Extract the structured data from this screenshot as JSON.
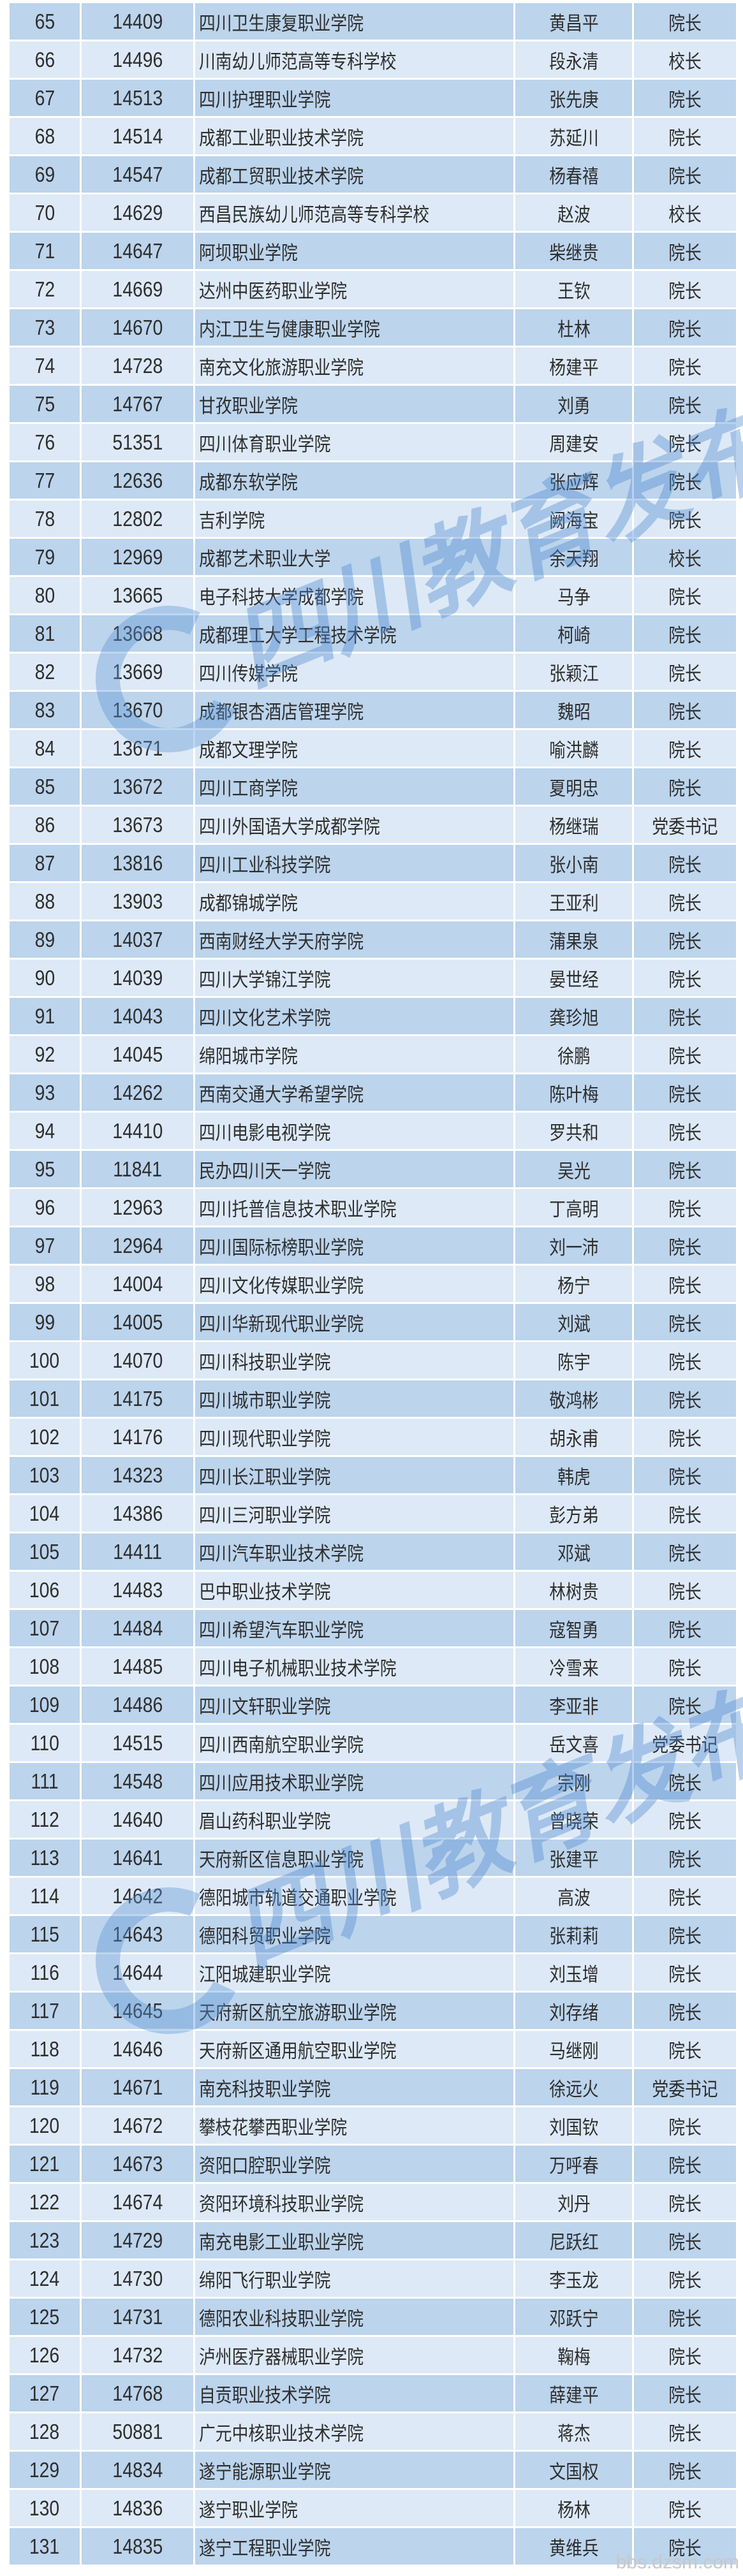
{
  "watermark": {
    "text": "四川教育发布",
    "site": "bbs.dzsm.com"
  },
  "table": {
    "rows": [
      [
        "65",
        "14409",
        "四川卫生康复职业学院",
        "黄昌平",
        "院长"
      ],
      [
        "66",
        "14496",
        "川南幼儿师范高等专科学校",
        "段永清",
        "校长"
      ],
      [
        "67",
        "14513",
        "四川护理职业学院",
        "张先庚",
        "院长"
      ],
      [
        "68",
        "14514",
        "成都工业职业技术学院",
        "苏延川",
        "院长"
      ],
      [
        "69",
        "14547",
        "成都工贸职业技术学院",
        "杨春禧",
        "院长"
      ],
      [
        "70",
        "14629",
        "西昌民族幼儿师范高等专科学校",
        "赵波",
        "校长"
      ],
      [
        "71",
        "14647",
        "阿坝职业学院",
        "柴继贵",
        "院长"
      ],
      [
        "72",
        "14669",
        "达州中医药职业学院",
        "王钦",
        "院长"
      ],
      [
        "73",
        "14670",
        "内江卫生与健康职业学院",
        "杜林",
        "院长"
      ],
      [
        "74",
        "14728",
        "南充文化旅游职业学院",
        "杨建平",
        "院长"
      ],
      [
        "75",
        "14767",
        "甘孜职业学院",
        "刘勇",
        "院长"
      ],
      [
        "76",
        "51351",
        "四川体育职业学院",
        "周建安",
        "院长"
      ],
      [
        "77",
        "12636",
        "成都东软学院",
        "张应辉",
        "院长"
      ],
      [
        "78",
        "12802",
        "吉利学院",
        "阙海宝",
        "院长"
      ],
      [
        "79",
        "12969",
        "成都艺术职业大学",
        "余天翔",
        "校长"
      ],
      [
        "80",
        "13665",
        "电子科技大学成都学院",
        "马争",
        "院长"
      ],
      [
        "81",
        "13668",
        "成都理工大学工程技术学院",
        "柯崎",
        "院长"
      ],
      [
        "82",
        "13669",
        "四川传媒学院",
        "张颖江",
        "院长"
      ],
      [
        "83",
        "13670",
        "成都银杏酒店管理学院",
        "魏昭",
        "院长"
      ],
      [
        "84",
        "13671",
        "成都文理学院",
        "喻洪麟",
        "院长"
      ],
      [
        "85",
        "13672",
        "四川工商学院",
        "夏明忠",
        "院长"
      ],
      [
        "86",
        "13673",
        "四川外国语大学成都学院",
        "杨继瑞",
        "党委书记"
      ],
      [
        "87",
        "13816",
        "四川工业科技学院",
        "张小南",
        "院长"
      ],
      [
        "88",
        "13903",
        "成都锦城学院",
        "王亚利",
        "院长"
      ],
      [
        "89",
        "14037",
        "西南财经大学天府学院",
        "蒲果泉",
        "院长"
      ],
      [
        "90",
        "14039",
        "四川大学锦江学院",
        "晏世经",
        "院长"
      ],
      [
        "91",
        "14043",
        "四川文化艺术学院",
        "龚珍旭",
        "院长"
      ],
      [
        "92",
        "14045",
        "绵阳城市学院",
        "徐鹏",
        "院长"
      ],
      [
        "93",
        "14262",
        "西南交通大学希望学院",
        "陈叶梅",
        "院长"
      ],
      [
        "94",
        "14410",
        "四川电影电视学院",
        "罗共和",
        "院长"
      ],
      [
        "95",
        "11841",
        "民办四川天一学院",
        "吴光",
        "院长"
      ],
      [
        "96",
        "12963",
        "四川托普信息技术职业学院",
        "丁高明",
        "院长"
      ],
      [
        "97",
        "12964",
        "四川国际标榜职业学院",
        "刘一沛",
        "院长"
      ],
      [
        "98",
        "14004",
        "四川文化传媒职业学院",
        "杨宁",
        "院长"
      ],
      [
        "99",
        "14005",
        "四川华新现代职业学院",
        "刘斌",
        "院长"
      ],
      [
        "100",
        "14070",
        "四川科技职业学院",
        "陈宇",
        "院长"
      ],
      [
        "101",
        "14175",
        "四川城市职业学院",
        "敬鸿彬",
        "院长"
      ],
      [
        "102",
        "14176",
        "四川现代职业学院",
        "胡永甫",
        "院长"
      ],
      [
        "103",
        "14323",
        "四川长江职业学院",
        "韩虎",
        "院长"
      ],
      [
        "104",
        "14386",
        "四川三河职业学院",
        "彭方弟",
        "院长"
      ],
      [
        "105",
        "14411",
        "四川汽车职业技术学院",
        "邓斌",
        "院长"
      ],
      [
        "106",
        "14483",
        "巴中职业技术学院",
        "林树贵",
        "院长"
      ],
      [
        "107",
        "14484",
        "四川希望汽车职业学院",
        "寇智勇",
        "院长"
      ],
      [
        "108",
        "14485",
        "四川电子机械职业技术学院",
        "冷雪来",
        "院长"
      ],
      [
        "109",
        "14486",
        "四川文轩职业学院",
        "李亚非",
        "院长"
      ],
      [
        "110",
        "14515",
        "四川西南航空职业学院",
        "岳文喜",
        "党委书记"
      ],
      [
        "111",
        "14548",
        "四川应用技术职业学院",
        "宗刚",
        "院长"
      ],
      [
        "112",
        "14640",
        "眉山药科职业学院",
        "曾晓荣",
        "院长"
      ],
      [
        "113",
        "14641",
        "天府新区信息职业学院",
        "张建平",
        "院长"
      ],
      [
        "114",
        "14642",
        "德阳城市轨道交通职业学院",
        "高波",
        "院长"
      ],
      [
        "115",
        "14643",
        "德阳科贸职业学院",
        "张莉莉",
        "院长"
      ],
      [
        "116",
        "14644",
        "江阳城建职业学院",
        "刘玉增",
        "院长"
      ],
      [
        "117",
        "14645",
        "天府新区航空旅游职业学院",
        "刘存绪",
        "院长"
      ],
      [
        "118",
        "14646",
        "天府新区通用航空职业学院",
        "马继刚",
        "院长"
      ],
      [
        "119",
        "14671",
        "南充科技职业学院",
        "徐远火",
        "党委书记"
      ],
      [
        "120",
        "14672",
        "攀枝花攀西职业学院",
        "刘国钦",
        "院长"
      ],
      [
        "121",
        "14673",
        "资阳口腔职业学院",
        "万呼春",
        "院长"
      ],
      [
        "122",
        "14674",
        "资阳环境科技职业学院",
        "刘丹",
        "院长"
      ],
      [
        "123",
        "14729",
        "南充电影工业职业学院",
        "尼跃红",
        "院长"
      ],
      [
        "124",
        "14730",
        "绵阳飞行职业学院",
        "李玉龙",
        "院长"
      ],
      [
        "125",
        "14731",
        "德阳农业科技职业学院",
        "邓跃宁",
        "院长"
      ],
      [
        "126",
        "14732",
        "泸州医疗器械职业学院",
        "鞠梅",
        "院长"
      ],
      [
        "127",
        "14768",
        "自贡职业技术学院",
        "薛建平",
        "院长"
      ],
      [
        "128",
        "50881",
        "广元中核职业技术学院",
        "蒋杰",
        "院长"
      ],
      [
        "129",
        "14834",
        "遂宁能源职业学院",
        "文国权",
        "院长"
      ],
      [
        "130",
        "14836",
        "遂宁职业学院",
        "杨林",
        "院长"
      ],
      [
        "131",
        "14835",
        "遂宁工程职业学院",
        "黄维兵",
        "院长"
      ]
    ]
  },
  "colors": {
    "row_odd": "#bcd4ec",
    "row_even": "#dde9f6",
    "text": "#2e2e2e",
    "watermark": "#4a88d0"
  }
}
